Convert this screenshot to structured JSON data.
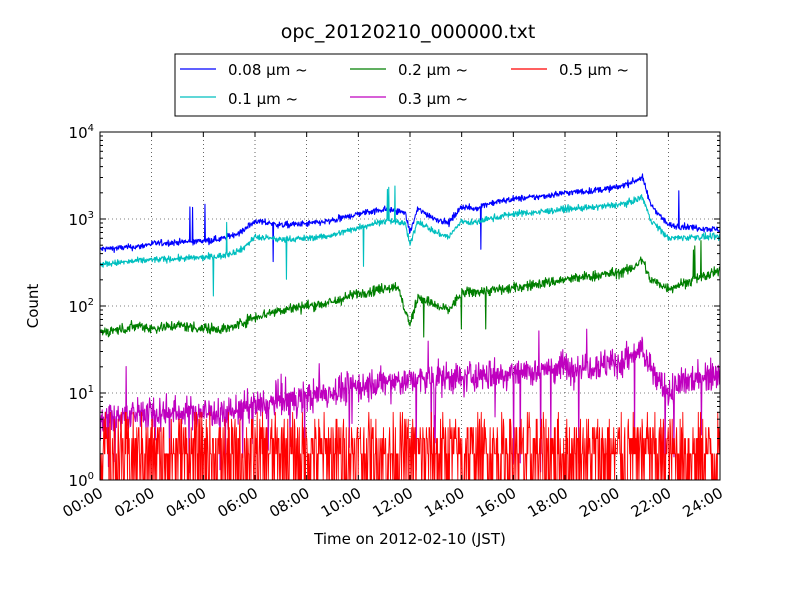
{
  "chart_data": {
    "type": "line",
    "title": "opc_20120210_000000.txt",
    "xlabel": "Time on 2012-02-10 (JST)",
    "ylabel": "Count",
    "x_ticks": [
      "00:00",
      "02:00",
      "04:00",
      "06:00",
      "08:00",
      "10:00",
      "12:00",
      "14:00",
      "16:00",
      "18:00",
      "20:00",
      "22:00",
      "24:00"
    ],
    "x_range_hours": [
      0,
      24
    ],
    "y_scale": "log",
    "ylim": [
      1,
      10000
    ],
    "y_ticks": [
      {
        "base": "10",
        "exp": "0"
      },
      {
        "base": "10",
        "exp": "1"
      },
      {
        "base": "10",
        "exp": "2"
      },
      {
        "base": "10",
        "exp": "3"
      },
      {
        "base": "10",
        "exp": "4"
      }
    ],
    "grid": true,
    "legend_position": "top",
    "series": [
      {
        "name": "0.08 μm ~",
        "color": "#0000ff",
        "noise": 0.06,
        "spikes": 0.004,
        "x": [
          0,
          1,
          1.5,
          2,
          3,
          4,
          4.8,
          5.5,
          6,
          6.5,
          7,
          8,
          9,
          10,
          11,
          11.8,
          12,
          12.3,
          13,
          13.5,
          14,
          14.5,
          15,
          16,
          17,
          18,
          19,
          20,
          20.5,
          21,
          21.3,
          22,
          23,
          24
        ],
        "y": [
          450,
          470,
          480,
          520,
          540,
          560,
          600,
          720,
          950,
          900,
          850,
          880,
          950,
          1150,
          1300,
          1200,
          700,
          1300,
          1000,
          900,
          1400,
          1300,
          1500,
          1700,
          1800,
          2000,
          2100,
          2300,
          2600,
          3000,
          1500,
          850,
          800,
          750
        ]
      },
      {
        "name": "0.1 μm ~",
        "color": "#00bfbf",
        "noise": 0.06,
        "spikes": 0.004,
        "x": [
          0,
          1,
          1.5,
          2,
          3,
          4,
          4.8,
          5.5,
          6,
          6.5,
          7,
          8,
          9,
          10,
          11,
          11.8,
          12,
          12.3,
          13,
          13.5,
          14,
          14.5,
          15,
          16,
          17,
          18,
          19,
          20,
          20.5,
          21,
          21.3,
          22,
          23,
          24
        ],
        "y": [
          300,
          320,
          330,
          340,
          350,
          360,
          380,
          450,
          620,
          600,
          580,
          600,
          650,
          800,
          950,
          900,
          500,
          950,
          700,
          620,
          950,
          900,
          1000,
          1150,
          1200,
          1300,
          1350,
          1450,
          1550,
          1800,
          1000,
          600,
          620,
          620
        ]
      },
      {
        "name": "0.2 μm ~",
        "color": "#007f00",
        "noise": 0.1,
        "spikes": 0.004,
        "x": [
          0,
          1,
          1.5,
          2,
          3,
          4,
          5,
          6,
          7,
          8,
          9,
          10,
          11,
          11.5,
          12,
          12.3,
          13,
          13.5,
          14,
          15,
          16,
          17,
          18,
          19,
          20,
          20.5,
          21,
          21.3,
          22,
          23,
          24
        ],
        "y": [
          50,
          55,
          60,
          55,
          60,
          55,
          55,
          75,
          90,
          100,
          110,
          140,
          160,
          170,
          60,
          130,
          100,
          90,
          140,
          150,
          160,
          180,
          200,
          220,
          240,
          260,
          340,
          200,
          160,
          200,
          250
        ]
      },
      {
        "name": "0.3 μm ~",
        "color": "#bf00bf",
        "noise": 0.3,
        "spikes": 0.01,
        "x": [
          0,
          2,
          4,
          5,
          6,
          7,
          8,
          10,
          12,
          14,
          15,
          16,
          18,
          20,
          21,
          21.5,
          22,
          23,
          24
        ],
        "y": [
          5,
          6,
          6,
          6,
          7,
          8,
          9,
          12,
          14,
          15,
          16,
          17,
          20,
          22,
          30,
          15,
          10,
          15,
          18
        ]
      },
      {
        "name": "0.5 μm ~",
        "color": "#ff0000",
        "noise": 0,
        "spikes": 0,
        "x": [
          0,
          4,
          8,
          12,
          16,
          20,
          21,
          22,
          24
        ],
        "y": [
          1.3,
          1.4,
          1.5,
          1.7,
          1.8,
          2.0,
          2.6,
          1.8,
          2.0
        ]
      }
    ]
  }
}
